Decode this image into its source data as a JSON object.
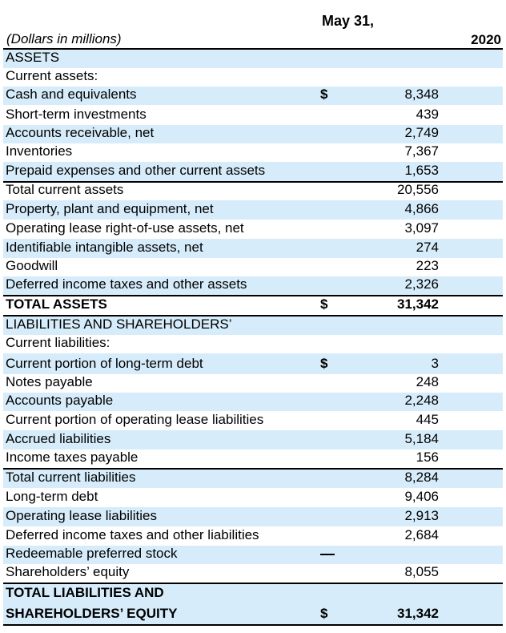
{
  "header": {
    "units_label": "(Dollars in millions)",
    "date_label": "May 31,",
    "year": "2020"
  },
  "rows": [
    {
      "label": "ASSETS",
      "currency": "",
      "value": "",
      "shaded": true,
      "bold": false,
      "h": 23
    },
    {
      "label": "Current assets:",
      "currency": "",
      "value": "",
      "shaded": false,
      "bold": false,
      "h": 23
    },
    {
      "label": "Cash and equivalents",
      "currency": "$",
      "value": "8,348",
      "shaded": true,
      "bold": false,
      "h": 23
    },
    {
      "label": "Short-term investments",
      "currency": "",
      "value": "439",
      "shaded": false,
      "bold": false,
      "h": 25
    },
    {
      "label": "Accounts receivable, net",
      "currency": "",
      "value": "2,749",
      "shaded": true,
      "bold": false,
      "h": 23
    },
    {
      "label": "Inventories",
      "currency": "",
      "value": "7,367",
      "shaded": false,
      "bold": false,
      "h": 23
    },
    {
      "label": "Prepaid expenses and other current assets",
      "currency": "",
      "value": "1,653",
      "shaded": true,
      "bold": false,
      "h": 24
    },
    {
      "label": "Total current assets",
      "currency": "",
      "value": "20,556",
      "shaded": false,
      "bold": false,
      "h": 24,
      "ruleTop": true
    },
    {
      "label": "Property, plant and equipment, net",
      "currency": "",
      "value": "4,866",
      "shaded": true,
      "bold": false,
      "h": 24
    },
    {
      "label": "Operating lease right-of-use assets, net",
      "currency": "",
      "value": "3,097",
      "shaded": false,
      "bold": false,
      "h": 24
    },
    {
      "label": "Identifiable intangible assets, net",
      "currency": "",
      "value": "274",
      "shaded": true,
      "bold": false,
      "h": 24
    },
    {
      "label": "Goodwill",
      "currency": "",
      "value": "223",
      "shaded": false,
      "bold": false,
      "h": 23
    },
    {
      "label": "Deferred income taxes and other assets",
      "currency": "",
      "value": "2,326",
      "shaded": true,
      "bold": false,
      "h": 23
    },
    {
      "label": "TOTAL ASSETS",
      "currency": "$",
      "value": "31,342",
      "shaded": false,
      "bold": true,
      "h": 27,
      "ruleTop": true,
      "ruleBottom": true
    },
    {
      "label": "LIABILITIES AND SHAREHOLDERS’",
      "currency": "",
      "value": "",
      "shaded": true,
      "bold": false,
      "h": 23
    },
    {
      "label": "Current liabilities:",
      "currency": "",
      "value": "",
      "shaded": false,
      "bold": false,
      "h": 23
    },
    {
      "label": "Current portion of long-term debt",
      "currency": "$",
      "value": "3",
      "shaded": true,
      "bold": false,
      "h": 26
    },
    {
      "label": "Notes payable",
      "currency": "",
      "value": "248",
      "shaded": false,
      "bold": false,
      "h": 23
    },
    {
      "label": "Accounts payable",
      "currency": "",
      "value": "2,248",
      "shaded": true,
      "bold": false,
      "h": 23
    },
    {
      "label": "Current portion of operating lease liabilities",
      "currency": "",
      "value": "445",
      "shaded": false,
      "bold": false,
      "h": 24
    },
    {
      "label": "Accrued liabilities",
      "currency": "",
      "value": "5,184",
      "shaded": true,
      "bold": false,
      "h": 24
    },
    {
      "label": "Income taxes payable",
      "currency": "",
      "value": "156",
      "shaded": false,
      "bold": false,
      "h": 23
    },
    {
      "label": "Total current liabilities",
      "currency": "",
      "value": "8,284",
      "shaded": true,
      "bold": false,
      "h": 25,
      "ruleTop": true
    },
    {
      "label": "Long-term debt",
      "currency": "",
      "value": "9,406",
      "shaded": false,
      "bold": false,
      "h": 24
    },
    {
      "label": "Operating lease liabilities",
      "currency": "",
      "value": "2,913",
      "shaded": true,
      "bold": false,
      "h": 24
    },
    {
      "label": "Deferred income taxes and other liabilities",
      "currency": "",
      "value": "2,684",
      "shaded": false,
      "bold": false,
      "h": 24
    },
    {
      "label": "Redeemable preferred stock",
      "currency": "",
      "value": "",
      "dash": true,
      "shaded": true,
      "bold": false,
      "h": 23
    },
    {
      "label": "Shareholders’ equity",
      "currency": "",
      "value": "8,055",
      "shaded": false,
      "bold": false,
      "h": 23
    },
    {
      "label": "TOTAL LIABILITIES AND",
      "currency": "",
      "value": "",
      "shaded": true,
      "bold": true,
      "h": 26,
      "ruleTop": true
    },
    {
      "label": "SHAREHOLDERS’ EQUITY",
      "currency": "$",
      "value": "31,342",
      "shaded": true,
      "bold": true,
      "h": 28,
      "ruleBottom": true
    }
  ]
}
